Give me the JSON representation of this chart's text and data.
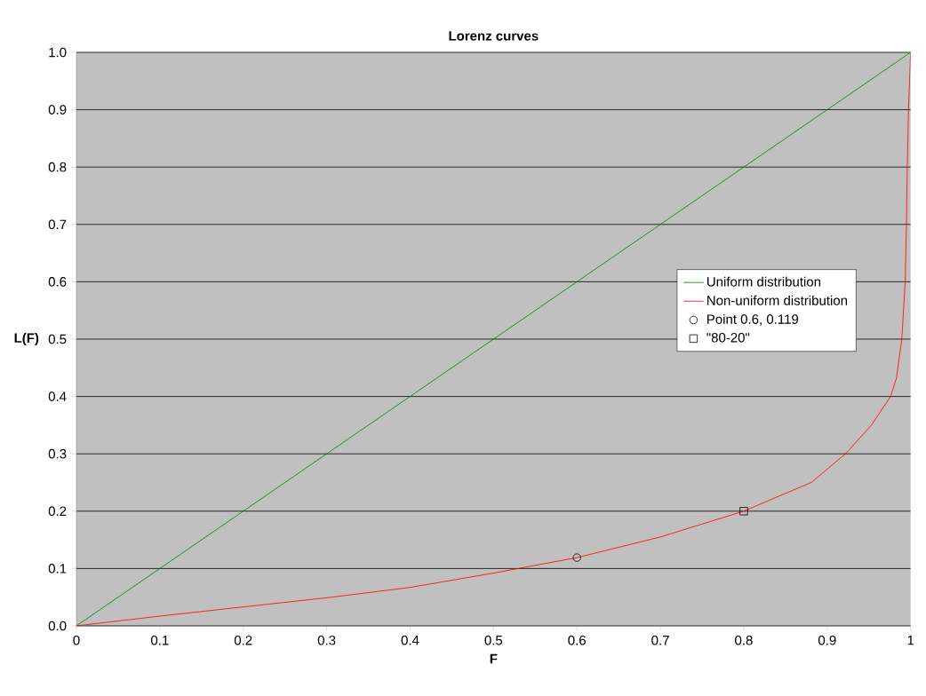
{
  "chart_data": {
    "type": "line",
    "title": "Lorenz curves",
    "xlabel": "F",
    "ylabel": "L(F)",
    "xlim": [
      0,
      1
    ],
    "ylim": [
      0,
      1
    ],
    "xticks": [
      0,
      0.1,
      0.2,
      0.3,
      0.4,
      0.5,
      0.6,
      0.7,
      0.8,
      0.9,
      1
    ],
    "yticks": [
      {
        "value": 0,
        "label": "0.0"
      },
      0.1,
      0.2,
      0.3,
      0.4,
      0.5,
      0.6,
      0.7,
      0.8,
      0.9,
      {
        "value": 1,
        "label": "1.0"
      }
    ],
    "grid": "y",
    "legend": "right",
    "line_style": "solid",
    "series": [
      {
        "name": "Uniform distribution",
        "color": "#008000",
        "marker": "none",
        "x": [
          0,
          1
        ],
        "values": [
          0,
          1
        ]
      },
      {
        "name": "Non-uniform distribution",
        "color": "#ff0000",
        "marker": "none",
        "x": [
          0,
          0.1,
          0.2,
          0.3,
          0.4,
          0.5,
          0.6,
          0.7,
          0.76,
          0.8,
          0.85,
          0.881,
          0.922,
          0.953,
          0.976,
          0.983,
          0.9895,
          0.9935,
          0.995,
          0.996,
          0.9975,
          1
        ],
        "values": [
          0,
          0.017,
          0.033,
          0.049,
          0.067,
          0.092,
          0.119,
          0.155,
          0.182,
          0.2,
          0.231,
          0.25,
          0.3,
          0.35,
          0.4,
          0.432,
          0.5,
          0.6,
          0.7,
          0.8,
          0.9,
          1
        ]
      },
      {
        "name": "Point 0.6, 0.119",
        "type": "scatter",
        "color": "#000000",
        "marker": "circle",
        "x": [
          0.6
        ],
        "values": [
          0.119
        ]
      },
      {
        "name": "\"80-20\"",
        "type": "scatter",
        "color": "#000000",
        "marker": "square",
        "x": [
          0.8
        ],
        "values": [
          0.2
        ]
      }
    ]
  }
}
